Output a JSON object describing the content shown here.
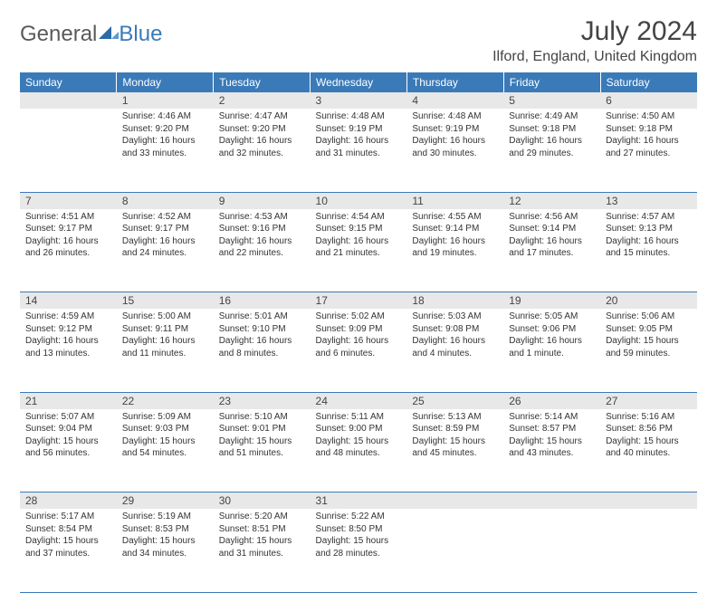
{
  "logo": {
    "text1": "General",
    "text2": "Blue"
  },
  "title": "July 2024",
  "location": "Ilford, England, United Kingdom",
  "colors": {
    "header_bg": "#3a7ab8",
    "header_text": "#ffffff",
    "daynum_bg": "#e8e8e8",
    "border": "#3a7ab8",
    "body_text": "#333333"
  },
  "weekdays": [
    "Sunday",
    "Monday",
    "Tuesday",
    "Wednesday",
    "Thursday",
    "Friday",
    "Saturday"
  ],
  "weeks": [
    [
      null,
      {
        "n": "1",
        "sr": "Sunrise: 4:46 AM",
        "ss": "Sunset: 9:20 PM",
        "dl": "Daylight: 16 hours and 33 minutes."
      },
      {
        "n": "2",
        "sr": "Sunrise: 4:47 AM",
        "ss": "Sunset: 9:20 PM",
        "dl": "Daylight: 16 hours and 32 minutes."
      },
      {
        "n": "3",
        "sr": "Sunrise: 4:48 AM",
        "ss": "Sunset: 9:19 PM",
        "dl": "Daylight: 16 hours and 31 minutes."
      },
      {
        "n": "4",
        "sr": "Sunrise: 4:48 AM",
        "ss": "Sunset: 9:19 PM",
        "dl": "Daylight: 16 hours and 30 minutes."
      },
      {
        "n": "5",
        "sr": "Sunrise: 4:49 AM",
        "ss": "Sunset: 9:18 PM",
        "dl": "Daylight: 16 hours and 29 minutes."
      },
      {
        "n": "6",
        "sr": "Sunrise: 4:50 AM",
        "ss": "Sunset: 9:18 PM",
        "dl": "Daylight: 16 hours and 27 minutes."
      }
    ],
    [
      {
        "n": "7",
        "sr": "Sunrise: 4:51 AM",
        "ss": "Sunset: 9:17 PM",
        "dl": "Daylight: 16 hours and 26 minutes."
      },
      {
        "n": "8",
        "sr": "Sunrise: 4:52 AM",
        "ss": "Sunset: 9:17 PM",
        "dl": "Daylight: 16 hours and 24 minutes."
      },
      {
        "n": "9",
        "sr": "Sunrise: 4:53 AM",
        "ss": "Sunset: 9:16 PM",
        "dl": "Daylight: 16 hours and 22 minutes."
      },
      {
        "n": "10",
        "sr": "Sunrise: 4:54 AM",
        "ss": "Sunset: 9:15 PM",
        "dl": "Daylight: 16 hours and 21 minutes."
      },
      {
        "n": "11",
        "sr": "Sunrise: 4:55 AM",
        "ss": "Sunset: 9:14 PM",
        "dl": "Daylight: 16 hours and 19 minutes."
      },
      {
        "n": "12",
        "sr": "Sunrise: 4:56 AM",
        "ss": "Sunset: 9:14 PM",
        "dl": "Daylight: 16 hours and 17 minutes."
      },
      {
        "n": "13",
        "sr": "Sunrise: 4:57 AM",
        "ss": "Sunset: 9:13 PM",
        "dl": "Daylight: 16 hours and 15 minutes."
      }
    ],
    [
      {
        "n": "14",
        "sr": "Sunrise: 4:59 AM",
        "ss": "Sunset: 9:12 PM",
        "dl": "Daylight: 16 hours and 13 minutes."
      },
      {
        "n": "15",
        "sr": "Sunrise: 5:00 AM",
        "ss": "Sunset: 9:11 PM",
        "dl": "Daylight: 16 hours and 11 minutes."
      },
      {
        "n": "16",
        "sr": "Sunrise: 5:01 AM",
        "ss": "Sunset: 9:10 PM",
        "dl": "Daylight: 16 hours and 8 minutes."
      },
      {
        "n": "17",
        "sr": "Sunrise: 5:02 AM",
        "ss": "Sunset: 9:09 PM",
        "dl": "Daylight: 16 hours and 6 minutes."
      },
      {
        "n": "18",
        "sr": "Sunrise: 5:03 AM",
        "ss": "Sunset: 9:08 PM",
        "dl": "Daylight: 16 hours and 4 minutes."
      },
      {
        "n": "19",
        "sr": "Sunrise: 5:05 AM",
        "ss": "Sunset: 9:06 PM",
        "dl": "Daylight: 16 hours and 1 minute."
      },
      {
        "n": "20",
        "sr": "Sunrise: 5:06 AM",
        "ss": "Sunset: 9:05 PM",
        "dl": "Daylight: 15 hours and 59 minutes."
      }
    ],
    [
      {
        "n": "21",
        "sr": "Sunrise: 5:07 AM",
        "ss": "Sunset: 9:04 PM",
        "dl": "Daylight: 15 hours and 56 minutes."
      },
      {
        "n": "22",
        "sr": "Sunrise: 5:09 AM",
        "ss": "Sunset: 9:03 PM",
        "dl": "Daylight: 15 hours and 54 minutes."
      },
      {
        "n": "23",
        "sr": "Sunrise: 5:10 AM",
        "ss": "Sunset: 9:01 PM",
        "dl": "Daylight: 15 hours and 51 minutes."
      },
      {
        "n": "24",
        "sr": "Sunrise: 5:11 AM",
        "ss": "Sunset: 9:00 PM",
        "dl": "Daylight: 15 hours and 48 minutes."
      },
      {
        "n": "25",
        "sr": "Sunrise: 5:13 AM",
        "ss": "Sunset: 8:59 PM",
        "dl": "Daylight: 15 hours and 45 minutes."
      },
      {
        "n": "26",
        "sr": "Sunrise: 5:14 AM",
        "ss": "Sunset: 8:57 PM",
        "dl": "Daylight: 15 hours and 43 minutes."
      },
      {
        "n": "27",
        "sr": "Sunrise: 5:16 AM",
        "ss": "Sunset: 8:56 PM",
        "dl": "Daylight: 15 hours and 40 minutes."
      }
    ],
    [
      {
        "n": "28",
        "sr": "Sunrise: 5:17 AM",
        "ss": "Sunset: 8:54 PM",
        "dl": "Daylight: 15 hours and 37 minutes."
      },
      {
        "n": "29",
        "sr": "Sunrise: 5:19 AM",
        "ss": "Sunset: 8:53 PM",
        "dl": "Daylight: 15 hours and 34 minutes."
      },
      {
        "n": "30",
        "sr": "Sunrise: 5:20 AM",
        "ss": "Sunset: 8:51 PM",
        "dl": "Daylight: 15 hours and 31 minutes."
      },
      {
        "n": "31",
        "sr": "Sunrise: 5:22 AM",
        "ss": "Sunset: 8:50 PM",
        "dl": "Daylight: 15 hours and 28 minutes."
      },
      null,
      null,
      null
    ]
  ]
}
